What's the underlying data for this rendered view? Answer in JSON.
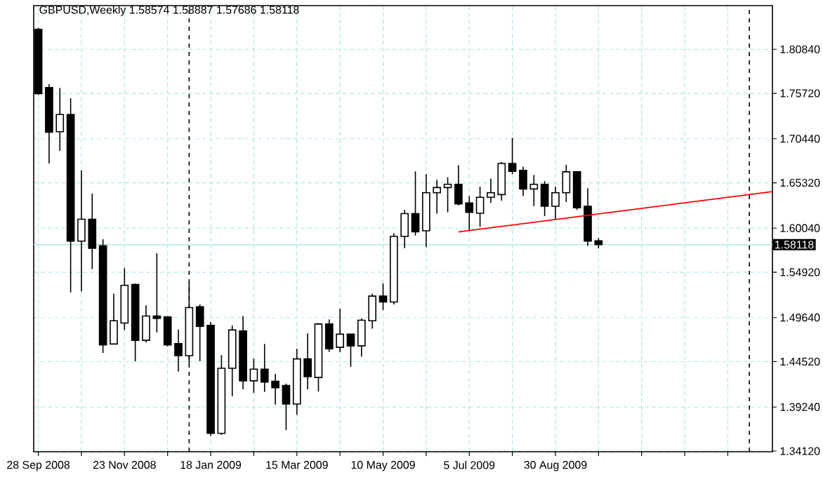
{
  "chart_data": {
    "type": "candlestick",
    "title": "GBPUSD,Weekly  1.58574 1.58887 1.57686 1.58118",
    "color": "#000000",
    "x": [
      "2008-09-28",
      "2008-10-05",
      "2008-10-12",
      "2008-10-19",
      "2008-10-26",
      "2008-11-02",
      "2008-11-09",
      "2008-11-16",
      "2008-11-23",
      "2008-11-30",
      "2008-12-07",
      "2008-12-14",
      "2008-12-21",
      "2008-12-28",
      "2009-01-04",
      "2009-01-11",
      "2009-01-18",
      "2009-01-25",
      "2009-02-01",
      "2009-02-08",
      "2009-02-15",
      "2009-02-22",
      "2009-03-01",
      "2009-03-08",
      "2009-03-15",
      "2009-03-22",
      "2009-03-29",
      "2009-04-05",
      "2009-04-12",
      "2009-04-19",
      "2009-04-26",
      "2009-05-03",
      "2009-05-10",
      "2009-05-17",
      "2009-05-24",
      "2009-05-31",
      "2009-06-07",
      "2009-06-14",
      "2009-06-21",
      "2009-06-28",
      "2009-07-05",
      "2009-07-12",
      "2009-07-19",
      "2009-07-26",
      "2009-08-02",
      "2009-08-09",
      "2009-08-16",
      "2009-08-23",
      "2009-08-30",
      "2009-09-06",
      "2009-09-13",
      "2009-09-20",
      "2009-09-27"
    ],
    "ohlc": [
      [
        1.8316,
        1.8332,
        1.7553,
        1.7569
      ],
      [
        1.7639,
        1.7678,
        1.6757,
        1.7119
      ],
      [
        1.7126,
        1.7634,
        1.6903,
        1.7326
      ],
      [
        1.7326,
        1.7516,
        1.5258,
        1.5853
      ],
      [
        1.5853,
        1.6676,
        1.5268,
        1.6108
      ],
      [
        1.6108,
        1.6405,
        1.5528,
        1.5771
      ],
      [
        1.5799,
        1.5875,
        1.4553,
        1.4646
      ],
      [
        1.4657,
        1.5242,
        1.4657,
        1.4927
      ],
      [
        1.4901,
        1.5539,
        1.482,
        1.5339
      ],
      [
        1.5349,
        1.5361,
        1.4456,
        1.47
      ],
      [
        1.47,
        1.5106,
        1.4674,
        1.4982
      ],
      [
        1.4982,
        1.5713,
        1.4792,
        1.4955
      ],
      [
        1.4971,
        1.4982,
        1.463,
        1.4646
      ],
      [
        1.4662,
        1.4825,
        1.4337,
        1.4521
      ],
      [
        1.4521,
        1.5377,
        1.443,
        1.508
      ],
      [
        1.509,
        1.5117,
        1.4456,
        1.4862
      ],
      [
        1.4873,
        1.4911,
        1.359,
        1.3618
      ],
      [
        1.3618,
        1.4528,
        1.36,
        1.4375
      ],
      [
        1.4375,
        1.4873,
        1.405,
        1.482
      ],
      [
        1.4808,
        1.4982,
        1.4131,
        1.4229
      ],
      [
        1.4229,
        1.4488,
        1.4089,
        1.4365
      ],
      [
        1.4365,
        1.4657,
        1.4099,
        1.4213
      ],
      [
        1.4224,
        1.431,
        1.3953,
        1.4148
      ],
      [
        1.4175,
        1.4196,
        1.3655,
        1.3959
      ],
      [
        1.3959,
        1.4602,
        1.3834,
        1.4484
      ],
      [
        1.4484,
        1.4781,
        1.4131,
        1.4277
      ],
      [
        1.4268,
        1.4901,
        1.4105,
        1.489
      ],
      [
        1.489,
        1.4943,
        1.4565,
        1.4602
      ],
      [
        1.4618,
        1.5068,
        1.4565,
        1.4771
      ],
      [
        1.4771,
        1.4771,
        1.4391,
        1.4635
      ],
      [
        1.4635,
        1.4955,
        1.4511,
        1.4933
      ],
      [
        1.4927,
        1.5242,
        1.4836,
        1.5214
      ],
      [
        1.5214,
        1.5361,
        1.5052,
        1.5145
      ],
      [
        1.5145,
        1.5945,
        1.5117,
        1.5908
      ],
      [
        1.5908,
        1.6216,
        1.5771,
        1.6173
      ],
      [
        1.6173,
        1.6665,
        1.5918,
        1.5961
      ],
      [
        1.5973,
        1.6632,
        1.5783,
        1.6416
      ],
      [
        1.6416,
        1.6567,
        1.6173,
        1.6476
      ],
      [
        1.6476,
        1.6595,
        1.6189,
        1.6514
      ],
      [
        1.6514,
        1.6736,
        1.627,
        1.6286
      ],
      [
        1.6298,
        1.6379,
        1.5973,
        1.6189
      ],
      [
        1.6178,
        1.6486,
        1.6019,
        1.6363
      ],
      [
        1.6363,
        1.6579,
        1.6298,
        1.6416
      ],
      [
        1.6395,
        1.6773,
        1.6324,
        1.6757
      ],
      [
        1.6757,
        1.7054,
        1.6632,
        1.6665
      ],
      [
        1.6676,
        1.672,
        1.6379,
        1.646
      ],
      [
        1.646,
        1.6622,
        1.6259,
        1.6514
      ],
      [
        1.6514,
        1.6551,
        1.6145,
        1.6259
      ],
      [
        1.6259,
        1.6486,
        1.6108,
        1.6416
      ],
      [
        1.6416,
        1.6741,
        1.6308,
        1.666
      ],
      [
        1.666,
        1.666,
        1.6216,
        1.6242
      ],
      [
        1.6259,
        1.647,
        1.5799,
        1.5853
      ],
      [
        1.58574,
        1.58887,
        1.57686,
        1.58118
      ]
    ],
    "series": [
      {
        "type": "line",
        "x": [
          "2009-06-28",
          "2010-01-18"
        ],
        "values": [
          1.596,
          1.643
        ],
        "color": "#ff0000"
      }
    ],
    "xlim": [
      "2008-09-25",
      "2010-01-18"
    ],
    "ylim": [
      1.3404,
      1.8592
    ],
    "xticks": [
      {
        "value": "2008-09-28",
        "label": "28 Sep 2008"
      },
      {
        "value": "2008-10-26",
        "label": null
      },
      {
        "value": "2008-11-23",
        "label": "23 Nov 2008"
      },
      {
        "value": "2008-12-21",
        "label": null
      },
      {
        "value": "2009-01-18",
        "label": "18 Jan 2009"
      },
      {
        "value": "2009-02-15",
        "label": null
      },
      {
        "value": "2009-03-15",
        "label": "15 Mar 2009"
      },
      {
        "value": "2009-04-12",
        "label": null
      },
      {
        "value": "2009-05-10",
        "label": "10 May 2009"
      },
      {
        "value": "2009-06-07",
        "label": null
      },
      {
        "value": "2009-07-05",
        "label": "5 Jul 2009"
      },
      {
        "value": "2009-08-02",
        "label": null
      },
      {
        "value": "2009-08-30",
        "label": "30 Aug 2009"
      },
      {
        "value": "2009-09-27",
        "label": null
      },
      {
        "value": "2009-10-25",
        "label": null
      },
      {
        "value": "2009-11-22",
        "label": null
      },
      {
        "value": "2009-12-20",
        "label": null
      }
    ],
    "yticks": [
      {
        "value": 1.3412,
        "label": "1.34120"
      },
      {
        "value": 1.3924,
        "label": "1.39240"
      },
      {
        "value": 1.4452,
        "label": "1.44520"
      },
      {
        "value": 1.4964,
        "label": "1.49640"
      },
      {
        "value": 1.5492,
        "label": "1.54920"
      },
      {
        "value": 1.6004,
        "label": "1.60040"
      },
      {
        "value": 1.6532,
        "label": "1.65320"
      },
      {
        "value": 1.7044,
        "label": "1.70440"
      },
      {
        "value": 1.7572,
        "label": "1.75720"
      },
      {
        "value": 1.8084,
        "label": "1.80840"
      }
    ],
    "grid": true,
    "ref_lines": [
      {
        "axis": "y",
        "value": 1.58118,
        "label": "1.58118",
        "color": "#b4e6e6",
        "line_style": "solid"
      },
      {
        "axis": "x",
        "value": "2009-01-04",
        "color": "#000000",
        "line_style": "dashed"
      },
      {
        "axis": "x",
        "value": "2010-01-03",
        "color": "#000000",
        "line_style": "dashed"
      }
    ]
  }
}
